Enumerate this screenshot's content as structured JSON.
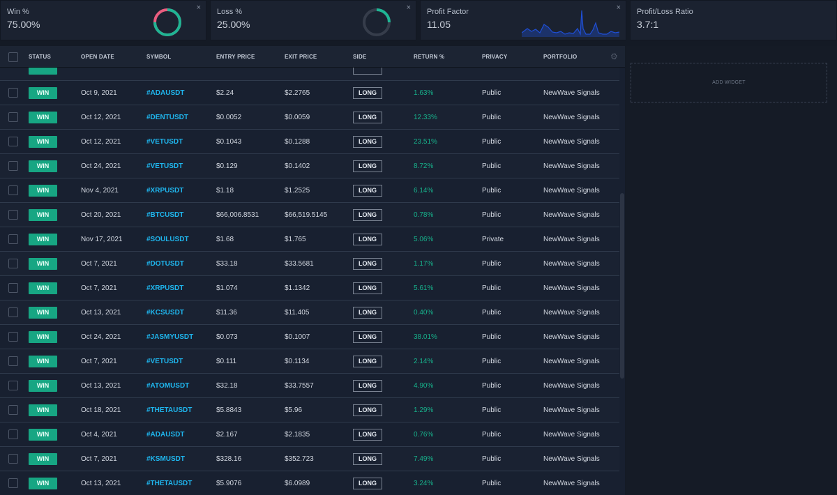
{
  "widgets": {
    "win": {
      "title": "Win %",
      "value": "75.00%",
      "fraction": 0.75,
      "color_main": "#1fb594",
      "color_rest": "#e95d7f"
    },
    "loss": {
      "title": "Loss %",
      "value": "25.00%",
      "fraction": 0.25,
      "color_main": "#1fb594",
      "color_rest": "#363d4b"
    },
    "profit_factor": {
      "title": "Profit Factor",
      "value": "11.05",
      "sparkline_color": "#1f4fd6"
    },
    "pl_ratio": {
      "title": "Profit/Loss Ratio",
      "value": "3.7:1"
    },
    "close_glyph": "×"
  },
  "table": {
    "headers": {
      "status": "STATUS",
      "open_date": "OPEN DATE",
      "symbol": "SYMBOL",
      "entry_price": "ENTRY PRICE",
      "exit_price": "EXIT PRICE",
      "side": "SIDE",
      "return_pct": "RETURN %",
      "privacy": "PRIVACY",
      "portfolio": "PORTFOLIO"
    },
    "rows": [
      {
        "status": "WIN",
        "open_date": "Oct 9, 2021",
        "symbol": "#ADAUSDT",
        "entry": "$2.24",
        "exit": "$2.2765",
        "side": "LONG",
        "ret": "1.63%",
        "privacy": "Public",
        "portfolio": "NewWave Signals"
      },
      {
        "status": "WIN",
        "open_date": "Oct 12, 2021",
        "symbol": "#DENTUSDT",
        "entry": "$0.0052",
        "exit": "$0.0059",
        "side": "LONG",
        "ret": "12.33%",
        "privacy": "Public",
        "portfolio": "NewWave Signals"
      },
      {
        "status": "WIN",
        "open_date": "Oct 12, 2021",
        "symbol": "#VETUSDT",
        "entry": "$0.1043",
        "exit": "$0.1288",
        "side": "LONG",
        "ret": "23.51%",
        "privacy": "Public",
        "portfolio": "NewWave Signals"
      },
      {
        "status": "WIN",
        "open_date": "Oct 24, 2021",
        "symbol": "#VETUSDT",
        "entry": "$0.129",
        "exit": "$0.1402",
        "side": "LONG",
        "ret": "8.72%",
        "privacy": "Public",
        "portfolio": "NewWave Signals"
      },
      {
        "status": "WIN",
        "open_date": "Nov 4, 2021",
        "symbol": "#XRPUSDT",
        "entry": "$1.18",
        "exit": "$1.2525",
        "side": "LONG",
        "ret": "6.14%",
        "privacy": "Public",
        "portfolio": "NewWave Signals"
      },
      {
        "status": "WIN",
        "open_date": "Oct 20, 2021",
        "symbol": "#BTCUSDT",
        "entry": "$66,006.8531",
        "exit": "$66,519.5145",
        "side": "LONG",
        "ret": "0.78%",
        "privacy": "Public",
        "portfolio": "NewWave Signals"
      },
      {
        "status": "WIN",
        "open_date": "Nov 17, 2021",
        "symbol": "#SOULUSDT",
        "entry": "$1.68",
        "exit": "$1.765",
        "side": "LONG",
        "ret": "5.06%",
        "privacy": "Private",
        "portfolio": "NewWave Signals"
      },
      {
        "status": "WIN",
        "open_date": "Oct 7, 2021",
        "symbol": "#DOTUSDT",
        "entry": "$33.18",
        "exit": "$33.5681",
        "side": "LONG",
        "ret": "1.17%",
        "privacy": "Public",
        "portfolio": "NewWave Signals"
      },
      {
        "status": "WIN",
        "open_date": "Oct 7, 2021",
        "symbol": "#XRPUSDT",
        "entry": "$1.074",
        "exit": "$1.1342",
        "side": "LONG",
        "ret": "5.61%",
        "privacy": "Public",
        "portfolio": "NewWave Signals"
      },
      {
        "status": "WIN",
        "open_date": "Oct 13, 2021",
        "symbol": "#KCSUSDT",
        "entry": "$11.36",
        "exit": "$11.405",
        "side": "LONG",
        "ret": "0.40%",
        "privacy": "Public",
        "portfolio": "NewWave Signals"
      },
      {
        "status": "WIN",
        "open_date": "Oct 24, 2021",
        "symbol": "#JASMYUSDT",
        "entry": "$0.073",
        "exit": "$0.1007",
        "side": "LONG",
        "ret": "38.01%",
        "privacy": "Public",
        "portfolio": "NewWave Signals"
      },
      {
        "status": "WIN",
        "open_date": "Oct 7, 2021",
        "symbol": "#VETUSDT",
        "entry": "$0.111",
        "exit": "$0.1134",
        "side": "LONG",
        "ret": "2.14%",
        "privacy": "Public",
        "portfolio": "NewWave Signals"
      },
      {
        "status": "WIN",
        "open_date": "Oct 13, 2021",
        "symbol": "#ATOMUSDT",
        "entry": "$32.18",
        "exit": "$33.7557",
        "side": "LONG",
        "ret": "4.90%",
        "privacy": "Public",
        "portfolio": "NewWave Signals"
      },
      {
        "status": "WIN",
        "open_date": "Oct 18, 2021",
        "symbol": "#THETAUSDT",
        "entry": "$5.8843",
        "exit": "$5.96",
        "side": "LONG",
        "ret": "1.29%",
        "privacy": "Public",
        "portfolio": "NewWave Signals"
      },
      {
        "status": "WIN",
        "open_date": "Oct 4, 2021",
        "symbol": "#ADAUSDT",
        "entry": "$2.167",
        "exit": "$2.1835",
        "side": "LONG",
        "ret": "0.76%",
        "privacy": "Public",
        "portfolio": "NewWave Signals"
      },
      {
        "status": "WIN",
        "open_date": "Oct 7, 2021",
        "symbol": "#KSMUSDT",
        "entry": "$328.16",
        "exit": "$352.723",
        "side": "LONG",
        "ret": "7.49%",
        "privacy": "Public",
        "portfolio": "NewWave Signals"
      },
      {
        "status": "WIN",
        "open_date": "Oct 13, 2021",
        "symbol": "#THETAUSDT",
        "entry": "$5.9076",
        "exit": "$6.0989",
        "side": "LONG",
        "ret": "3.24%",
        "privacy": "Public",
        "portfolio": "NewWave Signals"
      }
    ]
  },
  "right_panel": {
    "add_widget_label": "ADD WIDGET"
  },
  "icons": {
    "close": "close-icon",
    "settings": "gear-icon",
    "checkbox": "checkbox-icon"
  }
}
